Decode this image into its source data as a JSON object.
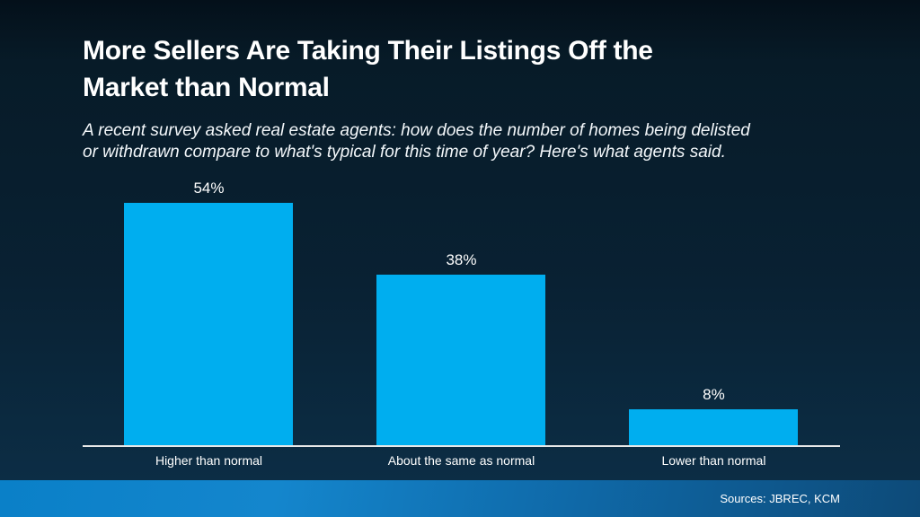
{
  "header": {
    "title_line1": "More Sellers Are Taking Their Listings Off the",
    "title_line2": "Market than Normal",
    "subtitle_line1": "A recent survey asked real estate agents: how does the number of homes being delisted",
    "subtitle_line2": "or withdrawn compare to what's typical for this time of year? Here's what agents said."
  },
  "chart_data": {
    "type": "bar",
    "categories": [
      "Higher than normal",
      "About the same as normal",
      "Lower than normal"
    ],
    "values": [
      54,
      38,
      8
    ],
    "value_labels": [
      "54%",
      "38%",
      "8%"
    ],
    "title": "More Sellers Are Taking Their Listings Off the Market than Normal",
    "xlabel": "",
    "ylabel": "",
    "ylim": [
      0,
      60
    ],
    "grid": false,
    "legend": "none",
    "bar_color": "#00AEEF",
    "axis_line_color": "#E8E8E8"
  },
  "footer": {
    "sources_label": "Sources: JBREC, KCM"
  },
  "colors": {
    "background_top": "#04101A",
    "background_bottom": "#0C2D45",
    "accent_bar": "#00AEEF",
    "footer_gradient_left": "#0A80C8",
    "footer_gradient_right": "#0D4A78",
    "text": "#FFFFFF"
  }
}
